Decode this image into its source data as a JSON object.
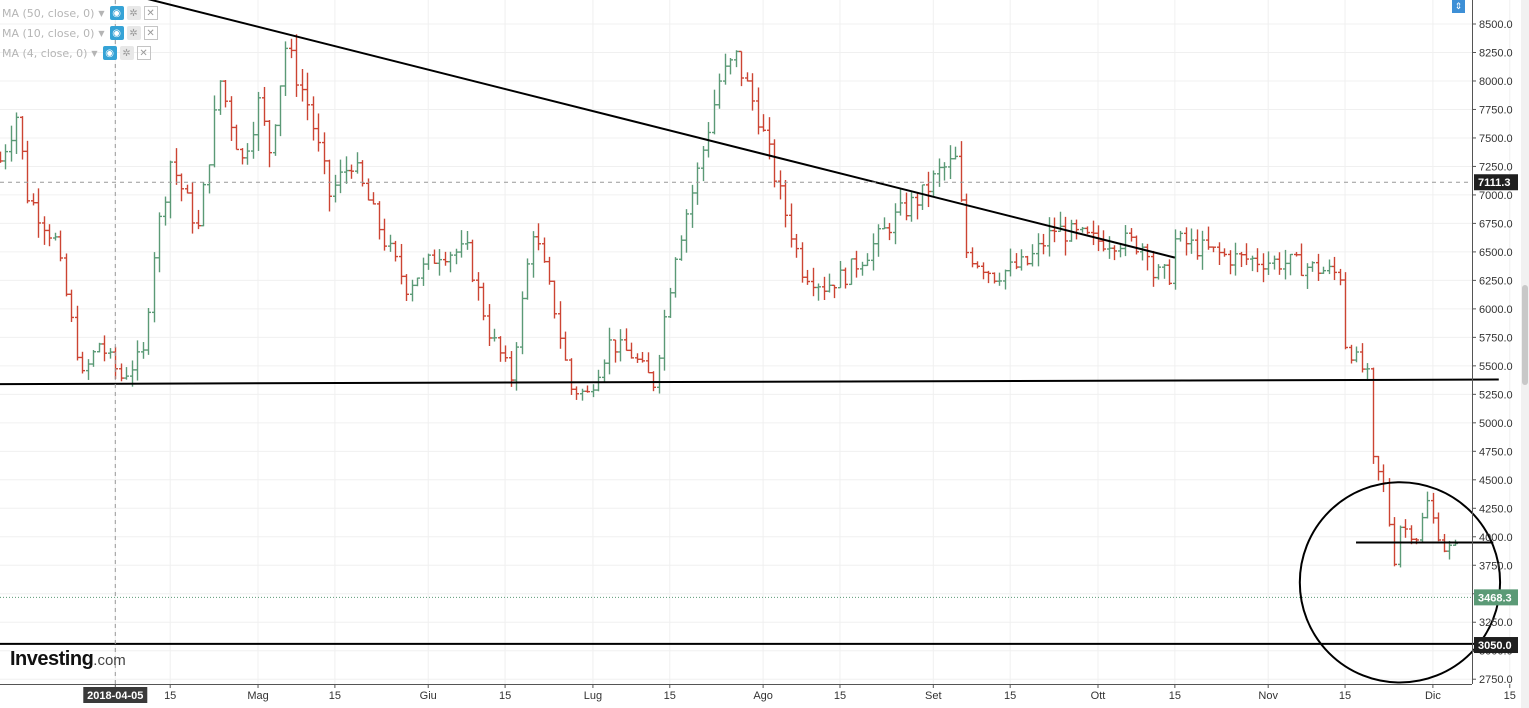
{
  "indicators": [
    {
      "label": "MA (50, close, 0)"
    },
    {
      "label": "MA (10, close, 0)"
    },
    {
      "label": "MA (4, close, 0)"
    }
  ],
  "icons": {
    "eye": "eye-icon",
    "gear": "gear-icon",
    "close": "close-icon",
    "caret": "chevron-down-icon",
    "scroll": "scroll-arrows-icon"
  },
  "brand": {
    "name": "Investing",
    "domain": ".com"
  },
  "colors": {
    "up": "#5b9a76",
    "down": "#cc4433",
    "trend": "#000000",
    "grid": "#f0f0f0"
  },
  "chart_data": {
    "type": "ohlc",
    "interval": "1 day",
    "date_range": [
      "2018-03-15",
      "2018-12-05"
    ],
    "ylim": [
      2650,
      8700
    ],
    "yticks": [
      2750,
      3000,
      3250,
      3500,
      3750,
      4000,
      4250,
      4500,
      4750,
      5000,
      5250,
      5500,
      5750,
      6000,
      6250,
      6500,
      6750,
      7000,
      7250,
      7500,
      7750,
      8000,
      8250,
      8500
    ],
    "ytick_labels": [
      "2750.0",
      "3000.0",
      "3250.0",
      "3500.0",
      "3750.0",
      "4000.0",
      "4250.0",
      "4500.0",
      "4750.0",
      "5000.0",
      "5250.0",
      "5500.0",
      "5750.0",
      "6000.0",
      "6250.0",
      "6500.0",
      "6750.0",
      "7000.0",
      "7250.0",
      "7500.0",
      "7750.0",
      "8000.0",
      "8250.0",
      "8500.0"
    ],
    "xticks": [
      {
        "date": "2018-04-05",
        "label": "2018-04-05",
        "highlight": true
      },
      {
        "date": "2018-04-15",
        "label": "15"
      },
      {
        "date": "2018-05-01",
        "label": "Mag"
      },
      {
        "date": "2018-05-15",
        "label": "15"
      },
      {
        "date": "2018-06-01",
        "label": "Giu"
      },
      {
        "date": "2018-06-15",
        "label": "15"
      },
      {
        "date": "2018-07-01",
        "label": "Lug"
      },
      {
        "date": "2018-07-15",
        "label": "15"
      },
      {
        "date": "2018-08-01",
        "label": "Ago"
      },
      {
        "date": "2018-08-15",
        "label": "15"
      },
      {
        "date": "2018-09-01",
        "label": "Set"
      },
      {
        "date": "2018-09-15",
        "label": "15"
      },
      {
        "date": "2018-10-01",
        "label": "Ott"
      },
      {
        "date": "2018-10-15",
        "label": "15"
      },
      {
        "date": "2018-11-01",
        "label": "Nov"
      },
      {
        "date": "2018-11-15",
        "label": "15"
      },
      {
        "date": "2018-12-01",
        "label": "Dic"
      },
      {
        "date": "2018-12-15",
        "label": "15"
      }
    ],
    "anchors": [
      {
        "date": "2018-03-15",
        "close": 7300
      },
      {
        "date": "2018-03-18",
        "close": 7700
      },
      {
        "date": "2018-03-20",
        "close": 7000
      },
      {
        "date": "2018-03-25",
        "close": 6600
      },
      {
        "date": "2018-03-30",
        "close": 5400
      },
      {
        "date": "2018-04-02",
        "close": 5700
      },
      {
        "date": "2018-04-06",
        "close": 5400
      },
      {
        "date": "2018-04-10",
        "close": 5600
      },
      {
        "date": "2018-04-12",
        "close": 6500
      },
      {
        "date": "2018-04-15",
        "close": 7300
      },
      {
        "date": "2018-04-20",
        "close": 6700
      },
      {
        "date": "2018-04-24",
        "close": 8000
      },
      {
        "date": "2018-04-28",
        "close": 7300
      },
      {
        "date": "2018-05-01",
        "close": 7800
      },
      {
        "date": "2018-05-03",
        "close": 7400
      },
      {
        "date": "2018-05-06",
        "close": 8300
      },
      {
        "date": "2018-05-10",
        "close": 7800
      },
      {
        "date": "2018-05-14",
        "close": 7000
      },
      {
        "date": "2018-05-18",
        "close": 7300
      },
      {
        "date": "2018-05-24",
        "close": 6600
      },
      {
        "date": "2018-05-28",
        "close": 6200
      },
      {
        "date": "2018-06-03",
        "close": 6500
      },
      {
        "date": "2018-06-08",
        "close": 6500
      },
      {
        "date": "2018-06-12",
        "close": 5800
      },
      {
        "date": "2018-06-16",
        "close": 5400
      },
      {
        "date": "2018-06-20",
        "close": 6700
      },
      {
        "date": "2018-06-24",
        "close": 6000
      },
      {
        "date": "2018-06-27",
        "close": 5300
      },
      {
        "date": "2018-06-30",
        "close": 5250
      },
      {
        "date": "2018-07-04",
        "close": 5700
      },
      {
        "date": "2018-07-08",
        "close": 5600
      },
      {
        "date": "2018-07-12",
        "close": 5350
      },
      {
        "date": "2018-07-16",
        "close": 6500
      },
      {
        "date": "2018-07-20",
        "close": 7200
      },
      {
        "date": "2018-07-24",
        "close": 8000
      },
      {
        "date": "2018-07-27",
        "close": 8200
      },
      {
        "date": "2018-07-31",
        "close": 7700
      },
      {
        "date": "2018-08-04",
        "close": 7000
      },
      {
        "date": "2018-08-08",
        "close": 6350
      },
      {
        "date": "2018-08-12",
        "close": 6200
      },
      {
        "date": "2018-08-16",
        "close": 6300
      },
      {
        "date": "2018-08-20",
        "close": 6500
      },
      {
        "date": "2018-08-25",
        "close": 6800
      },
      {
        "date": "2018-08-30",
        "close": 7000
      },
      {
        "date": "2018-09-02",
        "close": 7200
      },
      {
        "date": "2018-09-05",
        "close": 7300
      },
      {
        "date": "2018-09-07",
        "close": 6500
      },
      {
        "date": "2018-09-12",
        "close": 6300
      },
      {
        "date": "2018-09-18",
        "close": 6400
      },
      {
        "date": "2018-09-23",
        "close": 6700
      },
      {
        "date": "2018-09-30",
        "close": 6600
      },
      {
        "date": "2018-10-05",
        "close": 6600
      },
      {
        "date": "2018-10-10",
        "close": 6550
      },
      {
        "date": "2018-10-11",
        "close": 6300
      },
      {
        "date": "2018-10-14",
        "close": 6300
      },
      {
        "date": "2018-10-15",
        "close": 6600
      },
      {
        "date": "2018-10-25",
        "close": 6450
      },
      {
        "date": "2018-11-05",
        "close": 6400
      },
      {
        "date": "2018-11-10",
        "close": 6350
      },
      {
        "date": "2018-11-14",
        "close": 6300
      },
      {
        "date": "2018-11-15",
        "close": 5700
      },
      {
        "date": "2018-11-19",
        "close": 5400
      },
      {
        "date": "2018-11-20",
        "close": 4650
      },
      {
        "date": "2018-11-22",
        "close": 4450
      },
      {
        "date": "2018-11-24",
        "close": 3800
      },
      {
        "date": "2018-11-25",
        "close": 4100
      },
      {
        "date": "2018-11-28",
        "close": 4000
      },
      {
        "date": "2018-11-30",
        "close": 4300
      },
      {
        "date": "2018-12-01",
        "close": 4150
      },
      {
        "date": "2018-12-03",
        "close": 3900
      },
      {
        "date": "2018-12-05",
        "close": 3900
      }
    ],
    "trend_lines": [
      {
        "name": "descending resistance",
        "from": {
          "date": "2018-03-27",
          "price": 8900
        },
        "to": {
          "date": "2018-10-15",
          "price": 6450
        }
      },
      {
        "name": "support",
        "from": {
          "date": "2018-03-15",
          "price": 5340
        },
        "to": {
          "date": "2018-12-13",
          "price": 5380
        }
      },
      {
        "name": "range top",
        "from": {
          "date": "2018-11-17",
          "price": 3950
        },
        "to": {
          "date": "2018-12-12",
          "price": 3950
        }
      },
      {
        "name": "range bottom",
        "from": {
          "date": "2018-03-15",
          "price": 3060
        },
        "to": {
          "date": "2018-12-13",
          "price": 3060
        }
      }
    ],
    "circle": {
      "center": {
        "date": "2018-11-25",
        "price": 3600
      },
      "radius_days": 12
    },
    "crosshair": {
      "date": "2018-04-05",
      "price": 7111.3,
      "label": "7111.3"
    },
    "price_labels": [
      {
        "price": 7111.3,
        "label": "7111.3",
        "style": "dark"
      },
      {
        "price": 3468.3,
        "label": "3468.3",
        "style": "green"
      },
      {
        "price": 3050.0,
        "label": "3050.0",
        "style": "dark"
      }
    ],
    "current_price": 3468.3
  }
}
